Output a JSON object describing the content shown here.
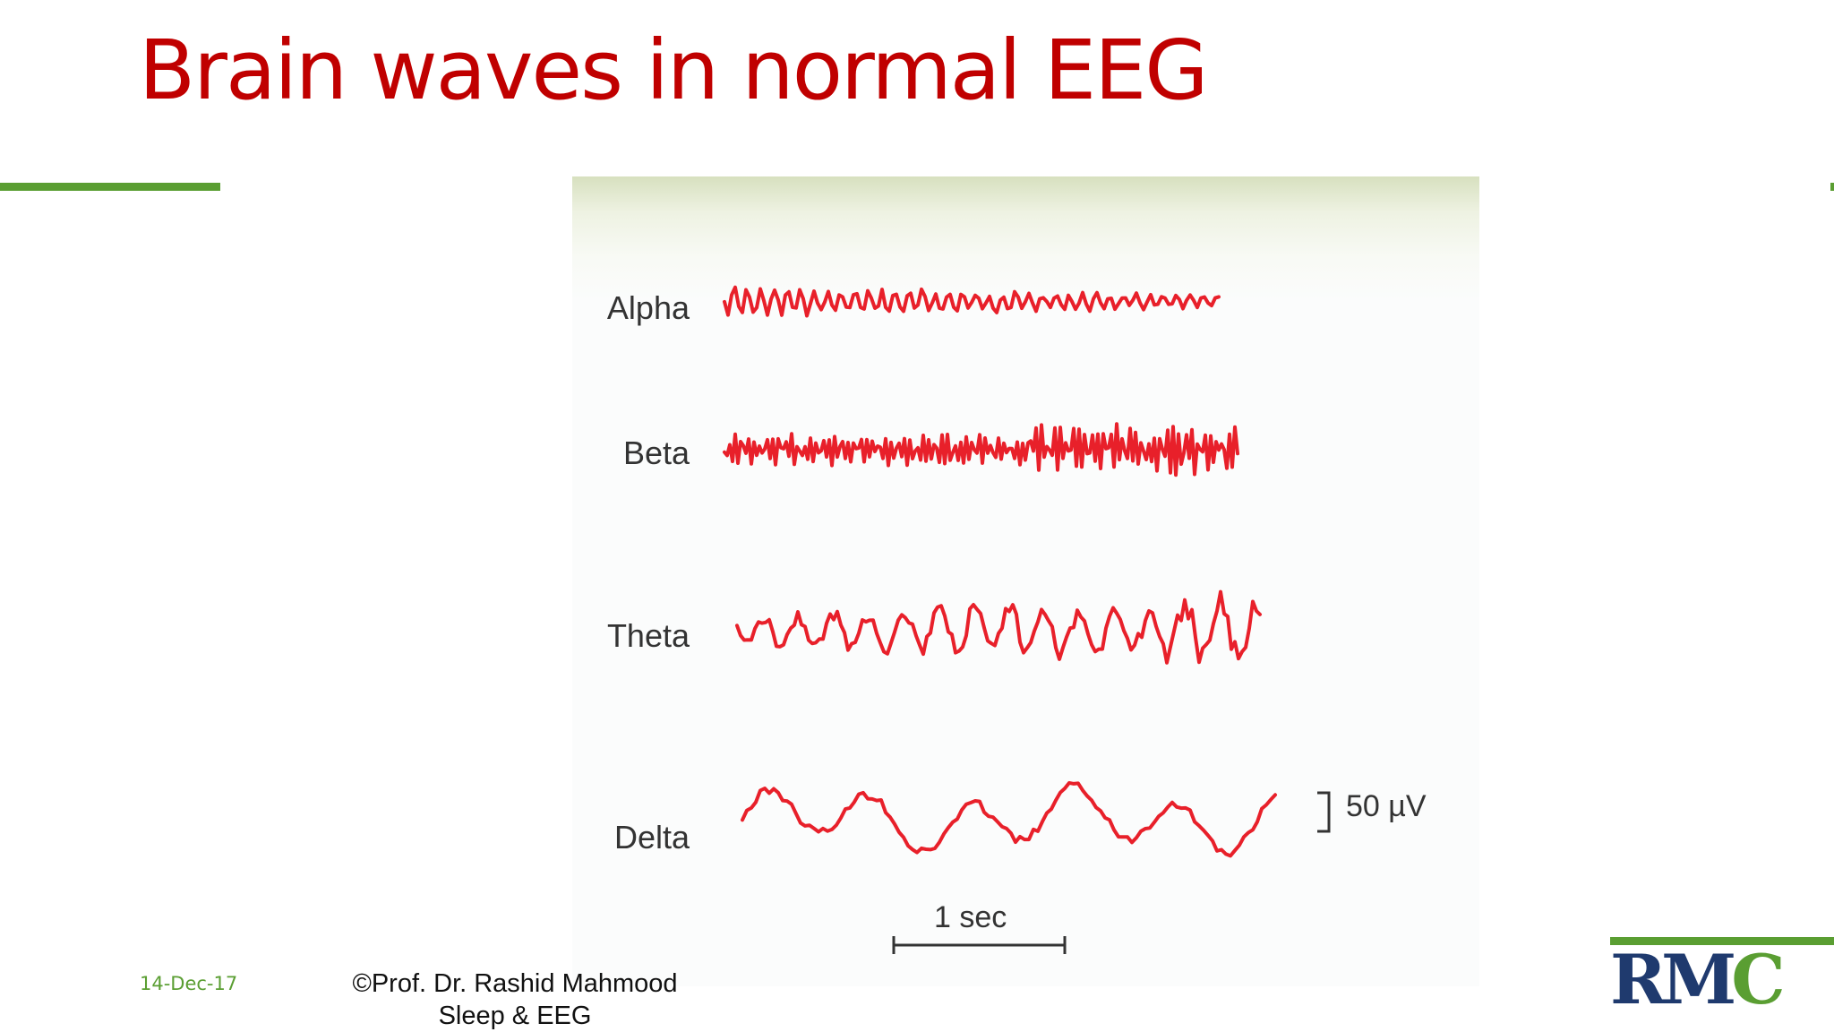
{
  "slide": {
    "title": "Brain waves in normal EEG",
    "date": "14-Dec-17",
    "credit_line1": "©Prof. Dr. Rashid Mahmood",
    "credit_line2": "Sleep & EEG"
  },
  "figure": {
    "labels": {
      "alpha": "Alpha",
      "beta": "Beta",
      "theta": "Theta",
      "delta": "Delta"
    },
    "amplitude_scale": "50 µV",
    "time_scale": "1 sec"
  },
  "logo": {
    "letters_blue": "RM",
    "letter_green": "C"
  },
  "colors": {
    "title": "#c00000",
    "accent_green": "#5a9e32",
    "wave_red": "#e8202a",
    "logo_blue": "#1f3a6e",
    "logo_green": "#5a9e32",
    "date_green": "#5a9e32"
  }
}
